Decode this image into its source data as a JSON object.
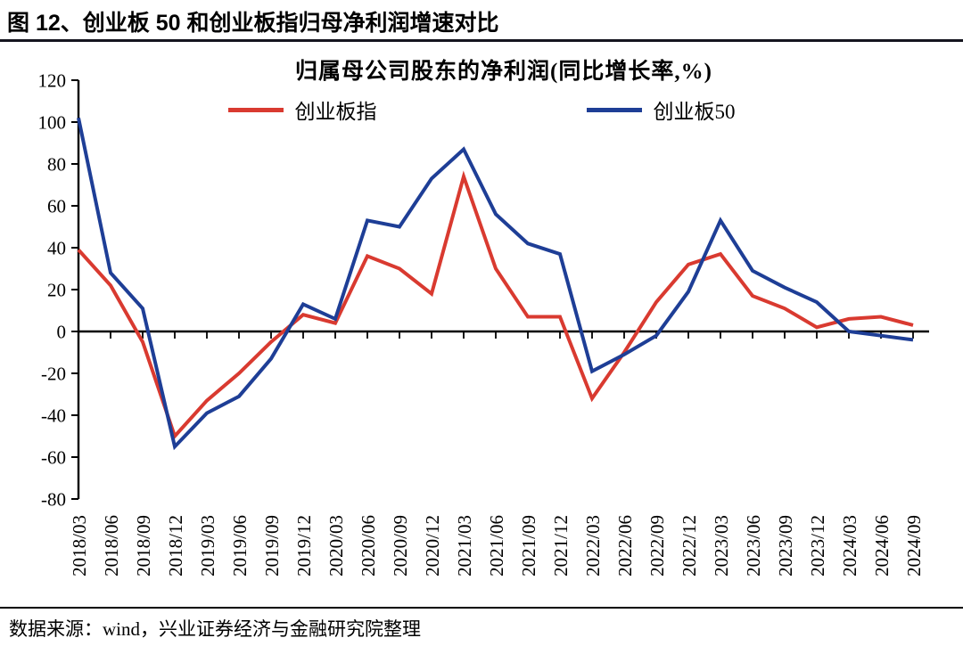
{
  "page": {
    "title": "图 12、创业板 50 和创业板指归母净利润增速对比",
    "source": "数据来源：wind，兴业证券经济与金融研究院整理"
  },
  "chart_data": {
    "type": "line",
    "title": "归属母公司股东的净利润(同比增长率,%)",
    "categories": [
      "2018/03",
      "2018/06",
      "2018/09",
      "2018/12",
      "2019/03",
      "2019/06",
      "2019/09",
      "2019/12",
      "2020/03",
      "2020/06",
      "2020/09",
      "2020/12",
      "2021/03",
      "2021/06",
      "2021/09",
      "2021/12",
      "2022/03",
      "2022/06",
      "2022/09",
      "2022/12",
      "2023/03",
      "2023/06",
      "2023/09",
      "2023/12",
      "2024/03",
      "2024/06",
      "2024/09"
    ],
    "series": [
      {
        "name": "创业板指",
        "color": "#d93a30",
        "values": [
          39,
          22,
          -5,
          -50,
          -33,
          -20,
          -5,
          8,
          4,
          36,
          30,
          18,
          74,
          30,
          7,
          7,
          -32,
          -10,
          14,
          32,
          37,
          17,
          11,
          2,
          6,
          7,
          3
        ]
      },
      {
        "name": "创业板50",
        "color": "#1e3e96",
        "values": [
          102,
          28,
          11,
          -55,
          -39,
          -31,
          -13,
          13,
          6,
          53,
          50,
          73,
          87,
          56,
          42,
          37,
          -19,
          -11,
          -2,
          19,
          53,
          29,
          21,
          14,
          0,
          -2,
          -4
        ]
      }
    ],
    "ylim": [
      -80,
      120
    ],
    "ytick_step": 20,
    "xlabel": "",
    "ylabel": "",
    "legend_position": "top",
    "grid": false,
    "axis_color": "#000000"
  }
}
